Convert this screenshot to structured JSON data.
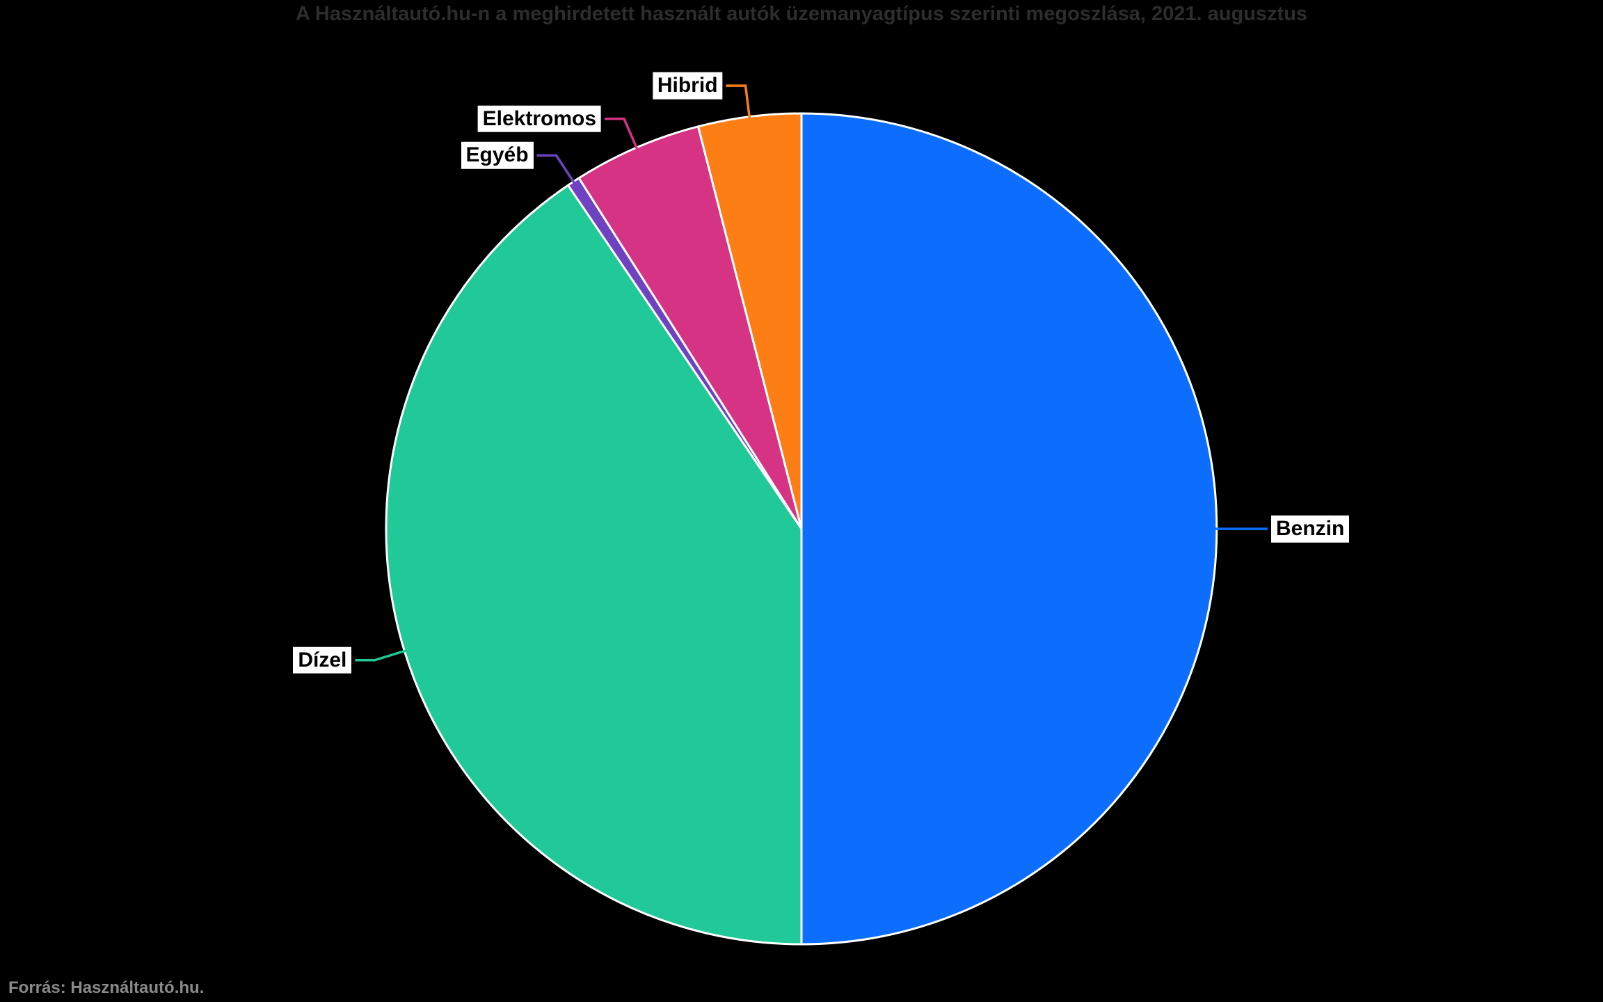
{
  "title": "A Használtautó.hu-n a meghirdetett használt autók üzemanyagtípus szerinti megoszlása, 2021. augusztus",
  "footer": "Forrás: Használtautó.hu.",
  "colors": {
    "background": "#000000",
    "title_text": "#2d2d2d",
    "footer_text": "#8a8a8a",
    "label_text": "#000000",
    "label_background": "#ffffff",
    "slice_border": "#ffffff"
  },
  "chart_data": {
    "type": "pie",
    "title": "A Használtautó.hu-n a meghirdetett használt autók üzemanyagtípus szerinti megoszlása, 2021. augusztus",
    "labels": [
      "Benzin",
      "Dízel",
      "Egyéb",
      "Elektromos",
      "Hibrid"
    ],
    "values": [
      50,
      40.5,
      0.5,
      5,
      4
    ],
    "unit": "%",
    "slice_colors": [
      "#0d6efd",
      "#20c997",
      "#6f42c1",
      "#d63384",
      "#fd7e14"
    ],
    "start_angle_deg": 0,
    "direction": "clockwise",
    "legend": "none",
    "label_position": "outside-with-leader-lines",
    "source_note": "Forrás: Használtautó.hu."
  }
}
